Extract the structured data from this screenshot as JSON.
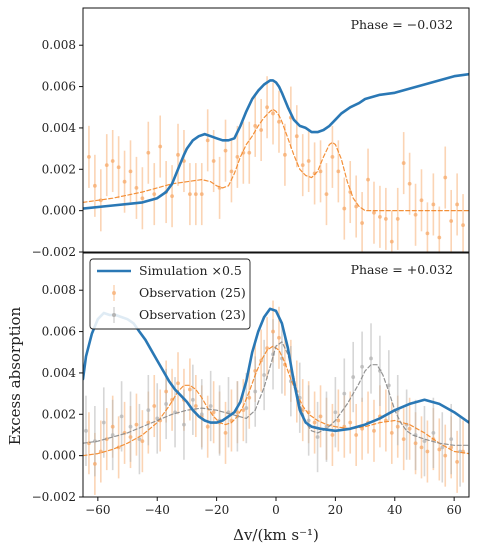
{
  "chart_data": [
    {
      "type": "line",
      "panel": "top",
      "annotation": "Phase = −0.032",
      "xlim": [
        -65,
        65
      ],
      "ylim": [
        -0.002,
        0.0098
      ],
      "yticks": [
        -0.002,
        0.0,
        0.002,
        0.004,
        0.006,
        0.008
      ],
      "ytick_labels": [
        "−0.002",
        "0.000",
        "0.002",
        "0.004",
        "0.006",
        "0.008"
      ],
      "grid": false,
      "series": [
        {
          "name": "Simulation ×0.5",
          "style": "solid",
          "color": "#2a78b5",
          "x": [
            -65,
            -55,
            -45,
            -40,
            -37,
            -35,
            -33,
            -31,
            -30,
            -28,
            -26,
            -24,
            -22,
            -20,
            -18,
            -16,
            -14,
            -12,
            -10,
            -8,
            -6,
            -4,
            -2,
            -1,
            0,
            1,
            2,
            4,
            6,
            8,
            10,
            12,
            14,
            16,
            18,
            20,
            22,
            25,
            28,
            30,
            35,
            40,
            45,
            50,
            55,
            60,
            65
          ],
          "y": [
            0.0001,
            0.00025,
            0.0004,
            0.0006,
            0.0009,
            0.0013,
            0.002,
            0.0027,
            0.003,
            0.0034,
            0.0036,
            0.0037,
            0.0036,
            0.0035,
            0.0034,
            0.0034,
            0.0035,
            0.0041,
            0.0048,
            0.0054,
            0.0058,
            0.0061,
            0.0063,
            0.0063,
            0.0062,
            0.006,
            0.0057,
            0.005,
            0.0044,
            0.0041,
            0.004,
            0.0038,
            0.0038,
            0.0039,
            0.0041,
            0.0044,
            0.0047,
            0.005,
            0.0052,
            0.0054,
            0.0056,
            0.0057,
            0.0059,
            0.0061,
            0.0063,
            0.0065,
            0.0066
          ]
        },
        {
          "name": "Observation (25)",
          "style": "dashed",
          "color": "#f28a2e",
          "x": [
            -65,
            -55,
            -45,
            -40,
            -35,
            -30,
            -25,
            -22,
            -20,
            -18,
            -16,
            -14,
            -12,
            -10,
            -8,
            -6,
            -4,
            -2,
            -1,
            0,
            1,
            2,
            4,
            6,
            8,
            10,
            12,
            14,
            16,
            18,
            19,
            20,
            22,
            24,
            26,
            28,
            30,
            35,
            40,
            50,
            65
          ],
          "y": [
            0.0004,
            0.0006,
            0.0009,
            0.0011,
            0.0013,
            0.0014,
            0.0015,
            0.0014,
            0.0012,
            0.0011,
            0.0012,
            0.0018,
            0.0026,
            0.0032,
            0.0036,
            0.0041,
            0.0045,
            0.0048,
            0.0049,
            0.0048,
            0.0046,
            0.0043,
            0.0035,
            0.0027,
            0.002,
            0.0017,
            0.0016,
            0.0019,
            0.0026,
            0.0032,
            0.0033,
            0.0032,
            0.0025,
            0.0014,
            0.0006,
            0.0002,
            0.0,
            0.0,
            0.0,
            0.0,
            0.0
          ]
        }
      ],
      "observation_points": {
        "name": "Observation (25)",
        "color": "#f7a969",
        "x": [
          -63,
          -61,
          -59,
          -57,
          -55,
          -53,
          -51,
          -49,
          -47,
          -45,
          -43,
          -41,
          -39,
          -37,
          -35,
          -33,
          -31,
          -29,
          -27,
          -25,
          -23,
          -21,
          -19,
          -17,
          -15,
          -13,
          -11,
          -9,
          -7,
          -5,
          -3,
          -1,
          1,
          3,
          5,
          7,
          9,
          11,
          13,
          15,
          17,
          19,
          21,
          23,
          25,
          27,
          29,
          31,
          33,
          35,
          37,
          39,
          41,
          43,
          45,
          47,
          49,
          51,
          53,
          55,
          57,
          59,
          61,
          63
        ],
        "y": [
          0.0026,
          0.0012,
          0.0005,
          0.0022,
          0.0024,
          0.0021,
          0.0014,
          0.0019,
          0.0011,
          0.0006,
          0.0028,
          0.0008,
          0.0031,
          0.0009,
          0.0007,
          0.0027,
          0.0024,
          0.0008,
          0.0008,
          0.0008,
          0.0034,
          0.0024,
          0.0011,
          0.0029,
          0.0019,
          0.0026,
          0.0028,
          0.0028,
          0.0041,
          0.0039,
          0.005,
          0.0047,
          0.0043,
          0.0027,
          0.0045,
          0.0036,
          0.0022,
          0.0024,
          0.0018,
          0.0019,
          0.0008,
          0.0026,
          0.0019,
          0.0001,
          0.0009,
          0.0002,
          -0.0006,
          0.0015,
          -0.0001,
          -0.0003,
          -0.0004,
          -0.0015,
          -0.0004,
          0.0023,
          0.0013,
          -0.0002,
          0.0005,
          -0.0011,
          0.0003,
          -0.0013,
          0.0016,
          -0.0005,
          0.0003,
          -0.0007
        ],
        "err": 0.0015
      }
    },
    {
      "type": "line",
      "panel": "bottom",
      "annotation": "Phase = +0.032",
      "xlim": [
        -65,
        65
      ],
      "ylim": [
        -0.002,
        0.0098
      ],
      "xticks": [
        -60,
        -40,
        -20,
        0,
        20,
        40,
        60
      ],
      "xtick_labels": [
        "−60",
        "−40",
        "−20",
        "0",
        "20",
        "40",
        "60"
      ],
      "yticks": [
        -0.002,
        0.0,
        0.002,
        0.004,
        0.006,
        0.008
      ],
      "ytick_labels": [
        "−0.002",
        "0.000",
        "0.002",
        "0.004",
        "0.006",
        "0.008"
      ],
      "grid": false,
      "series": [
        {
          "name": "Simulation ×0.5",
          "style": "solid",
          "color": "#2a78b5",
          "x": [
            -65,
            -64,
            -62,
            -60,
            -58,
            -56,
            -54,
            -52,
            -50,
            -48,
            -46,
            -44,
            -42,
            -40,
            -38,
            -36,
            -34,
            -32,
            -30,
            -28,
            -26,
            -24,
            -22,
            -20,
            -18,
            -16,
            -14,
            -12,
            -10,
            -8,
            -6,
            -4,
            -2,
            0,
            2,
            4,
            6,
            8,
            10,
            12,
            15,
            20,
            25,
            30,
            35,
            40,
            45,
            50,
            55,
            60,
            65
          ],
          "y": [
            0.0037,
            0.0048,
            0.0059,
            0.0066,
            0.0069,
            0.0068,
            0.0068,
            0.0067,
            0.0066,
            0.0064,
            0.006,
            0.0056,
            0.0051,
            0.0046,
            0.0041,
            0.0036,
            0.0032,
            0.0029,
            0.0026,
            0.0022,
            0.0019,
            0.0017,
            0.0016,
            0.0016,
            0.0017,
            0.0019,
            0.0021,
            0.0026,
            0.0036,
            0.005,
            0.006,
            0.0067,
            0.0071,
            0.007,
            0.0064,
            0.0052,
            0.0036,
            0.0022,
            0.0016,
            0.0014,
            0.0013,
            0.0012,
            0.0013,
            0.0015,
            0.0018,
            0.0022,
            0.0025,
            0.0027,
            0.0025,
            0.0021,
            0.0016
          ]
        },
        {
          "name": "Observation (25)",
          "style": "dashed",
          "color": "#f28a2e",
          "x": [
            -65,
            -60,
            -55,
            -50,
            -45,
            -40,
            -36,
            -33,
            -31,
            -29,
            -27,
            -25,
            -23,
            -21,
            -19,
            -17,
            -15,
            -13,
            -11,
            -9,
            -7,
            -5,
            -3,
            -1,
            1,
            3,
            5,
            7,
            9,
            11,
            14,
            17,
            20,
            25,
            30,
            35,
            40,
            45,
            50,
            55,
            60,
            65
          ],
          "y": [
            0.0,
            0.0001,
            0.0003,
            0.0006,
            0.001,
            0.0016,
            0.0024,
            0.0031,
            0.0034,
            0.0034,
            0.0032,
            0.0028,
            0.0023,
            0.0019,
            0.0016,
            0.0015,
            0.0016,
            0.0019,
            0.0024,
            0.0031,
            0.0039,
            0.0046,
            0.0051,
            0.0053,
            0.0051,
            0.0045,
            0.0037,
            0.003,
            0.0024,
            0.002,
            0.0017,
            0.0015,
            0.0014,
            0.0013,
            0.0014,
            0.0016,
            0.0017,
            0.0015,
            0.0011,
            0.0006,
            0.0002,
            0.0001
          ]
        },
        {
          "name": "Observation (23)",
          "style": "dashed",
          "color": "#8c8c8c",
          "x": [
            -65,
            -60,
            -55,
            -50,
            -45,
            -40,
            -35,
            -30,
            -25,
            -20,
            -15,
            -10,
            -7,
            -4,
            -2,
            0,
            2,
            4,
            6,
            8,
            10,
            12,
            14,
            17,
            20,
            24,
            28,
            30,
            32,
            34,
            36,
            38,
            40,
            42,
            44,
            46,
            50,
            55,
            60,
            65
          ],
          "y": [
            0.0006,
            0.0007,
            0.0009,
            0.0011,
            0.0014,
            0.0017,
            0.002,
            0.0022,
            0.0023,
            0.0022,
            0.002,
            0.0018,
            0.0022,
            0.0033,
            0.0043,
            0.0053,
            0.0055,
            0.0049,
            0.0038,
            0.0025,
            0.0016,
            0.0012,
            0.0011,
            0.0013,
            0.0017,
            0.0025,
            0.0035,
            0.0041,
            0.0044,
            0.0044,
            0.0039,
            0.0031,
            0.0022,
            0.0016,
            0.0012,
            0.001,
            0.0008,
            0.0006,
            0.0005,
            0.0005
          ]
        }
      ],
      "observation_points": [
        {
          "name": "Observation (25)",
          "color": "#f7a969",
          "x": [
            -63,
            -61,
            -59,
            -57,
            -55,
            -53,
            -51,
            -49,
            -47,
            -45,
            -43,
            -41,
            -39,
            -37,
            -35,
            -33,
            -31,
            -29,
            -27,
            -25,
            -23,
            -21,
            -19,
            -17,
            -15,
            -13,
            -11,
            -9,
            -7,
            -5,
            -3,
            -1,
            1,
            3,
            5,
            7,
            9,
            11,
            13,
            15,
            17,
            19,
            21,
            23,
            25,
            27,
            29,
            31,
            33,
            35,
            37,
            39,
            41,
            43,
            45,
            47,
            49,
            51,
            53,
            55,
            57,
            59,
            61,
            63
          ],
          "y": [
            0.0006,
            -0.0004,
            0.0002,
            0.0008,
            0.0014,
            0.0004,
            0.0011,
            0.0009,
            0.0015,
            0.0007,
            0.0016,
            0.0024,
            0.0017,
            0.0031,
            0.0027,
            0.0035,
            0.0027,
            0.0032,
            0.0024,
            0.0019,
            0.0014,
            0.0021,
            0.0016,
            0.0011,
            0.0017,
            0.0021,
            0.0022,
            0.0028,
            0.0041,
            0.0046,
            0.0052,
            0.006,
            0.0057,
            0.0044,
            0.0041,
            0.0031,
            0.0022,
            0.0021,
            0.0016,
            0.0019,
            0.0013,
            0.001,
            0.0017,
            0.0014,
            0.0016,
            0.001,
            0.0013,
            0.0016,
            0.0012,
            0.0019,
            0.0017,
            0.0011,
            0.0014,
            0.0008,
            0.0013,
            0.0006,
            0.0004,
            0.0002,
            0.0008,
            0.0003,
            0.0,
            0.0004,
            -0.0003,
            0.0002
          ],
          "err": 0.0015
        },
        {
          "name": "Observation (23)",
          "color": "#b4b4b4",
          "x": [
            -64,
            -61,
            -58,
            -55,
            -52,
            -49,
            -46,
            -43,
            -40,
            -37,
            -34,
            -31,
            -28,
            -25,
            -22,
            -19,
            -16,
            -13,
            -10,
            -7,
            -4,
            -1,
            2,
            5,
            8,
            11,
            14,
            17,
            20,
            23,
            26,
            29,
            32,
            35,
            38,
            41,
            44,
            47,
            50,
            53,
            56,
            59,
            62
          ],
          "y": [
            0.0012,
            0.0007,
            0.0016,
            0.001,
            0.0019,
            0.0014,
            0.0008,
            0.0022,
            0.0018,
            0.0025,
            0.0021,
            0.0015,
            0.0027,
            0.002,
            0.0024,
            0.0017,
            0.0021,
            0.0019,
            0.0023,
            0.0031,
            0.0039,
            0.0049,
            0.0047,
            0.0036,
            0.0028,
            0.0017,
            0.0009,
            0.0014,
            0.0021,
            0.003,
            0.0038,
            0.0043,
            0.0047,
            0.0041,
            0.0034,
            0.0022,
            0.0015,
            0.001,
            0.0007,
            0.0011,
            0.0004,
            0.0008,
            0.0002
          ],
          "err": 0.0017
        }
      ],
      "legend": {
        "placement": "top-left",
        "entries": [
          "Simulation ×0.5",
          "Observation (25)",
          "Observation (23)"
        ]
      }
    }
  ],
  "xlabel": "Δv/(km s⁻¹)",
  "ylabel": "Excess absorption"
}
